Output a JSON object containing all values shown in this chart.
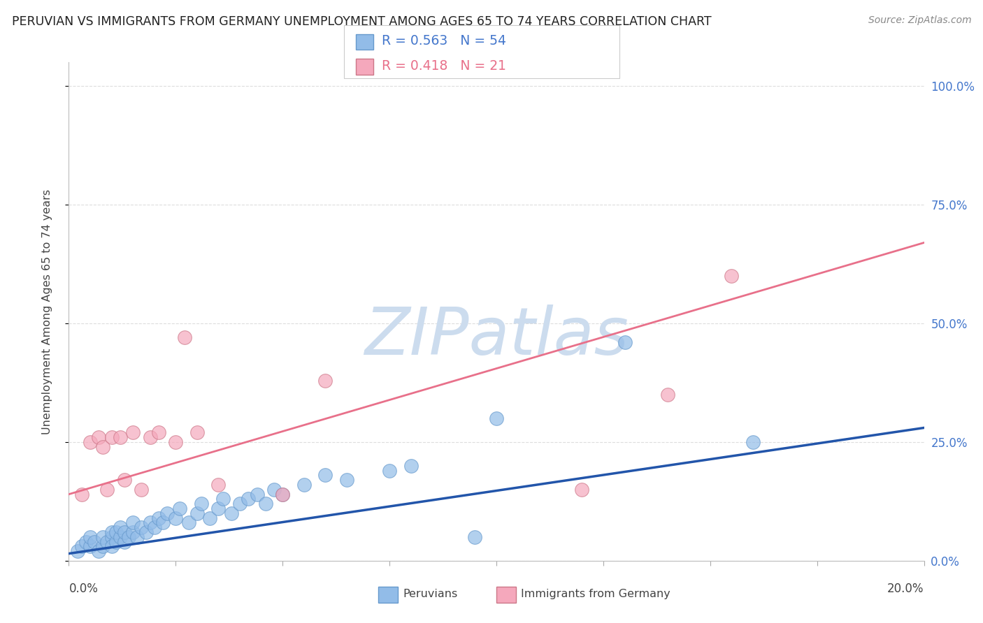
{
  "title": "PERUVIAN VS IMMIGRANTS FROM GERMANY UNEMPLOYMENT AMONG AGES 65 TO 74 YEARS CORRELATION CHART",
  "source": "Source: ZipAtlas.com",
  "ylabel": "Unemployment Among Ages 65 to 74 years",
  "right_yticks": [
    "0.0%",
    "25.0%",
    "50.0%",
    "75.0%",
    "100.0%"
  ],
  "right_ytick_vals": [
    0,
    0.25,
    0.5,
    0.75,
    1.0
  ],
  "xmin": 0.0,
  "xmax": 0.2,
  "ymin": 0.0,
  "ymax": 1.05,
  "legend_blue_r": "R = 0.563",
  "legend_blue_n": "N = 54",
  "legend_pink_r": "R = 0.418",
  "legend_pink_n": "N = 21",
  "blue_color": "#92bce8",
  "pink_color": "#f5a8bc",
  "blue_line_color": "#2255aa",
  "pink_line_color": "#e8708a",
  "blue_scatter_x": [
    0.002,
    0.003,
    0.004,
    0.005,
    0.005,
    0.006,
    0.007,
    0.008,
    0.008,
    0.009,
    0.01,
    0.01,
    0.01,
    0.011,
    0.011,
    0.012,
    0.012,
    0.013,
    0.013,
    0.014,
    0.015,
    0.015,
    0.016,
    0.017,
    0.018,
    0.019,
    0.02,
    0.021,
    0.022,
    0.023,
    0.025,
    0.026,
    0.028,
    0.03,
    0.031,
    0.033,
    0.035,
    0.036,
    0.038,
    0.04,
    0.042,
    0.044,
    0.046,
    0.048,
    0.05,
    0.055,
    0.06,
    0.065,
    0.075,
    0.08,
    0.095,
    0.1,
    0.13,
    0.16
  ],
  "blue_scatter_y": [
    0.02,
    0.03,
    0.04,
    0.03,
    0.05,
    0.04,
    0.02,
    0.03,
    0.05,
    0.04,
    0.05,
    0.06,
    0.03,
    0.04,
    0.06,
    0.05,
    0.07,
    0.04,
    0.06,
    0.05,
    0.06,
    0.08,
    0.05,
    0.07,
    0.06,
    0.08,
    0.07,
    0.09,
    0.08,
    0.1,
    0.09,
    0.11,
    0.08,
    0.1,
    0.12,
    0.09,
    0.11,
    0.13,
    0.1,
    0.12,
    0.13,
    0.14,
    0.12,
    0.15,
    0.14,
    0.16,
    0.18,
    0.17,
    0.19,
    0.2,
    0.05,
    0.3,
    0.46,
    0.25
  ],
  "pink_scatter_x": [
    0.003,
    0.005,
    0.007,
    0.008,
    0.009,
    0.01,
    0.012,
    0.013,
    0.015,
    0.017,
    0.019,
    0.021,
    0.025,
    0.027,
    0.03,
    0.035,
    0.05,
    0.06,
    0.12,
    0.14,
    0.155
  ],
  "pink_scatter_y": [
    0.14,
    0.25,
    0.26,
    0.24,
    0.15,
    0.26,
    0.26,
    0.17,
    0.27,
    0.15,
    0.26,
    0.27,
    0.25,
    0.47,
    0.27,
    0.16,
    0.14,
    0.38,
    0.15,
    0.35,
    0.6
  ],
  "blue_trend_x": [
    0.0,
    0.2
  ],
  "blue_trend_y": [
    0.015,
    0.28
  ],
  "pink_trend_x": [
    0.0,
    0.2
  ],
  "pink_trend_y": [
    0.14,
    0.67
  ],
  "watermark": "ZIPatlas",
  "watermark_color": "#ccdcee",
  "background_color": "#ffffff",
  "grid_color": "#dddddd",
  "title_color": "#222222",
  "axis_label_color": "#444444",
  "right_axis_color": "#4477cc",
  "text_color_blue": "#4477cc",
  "text_color_pink": "#e8708a"
}
